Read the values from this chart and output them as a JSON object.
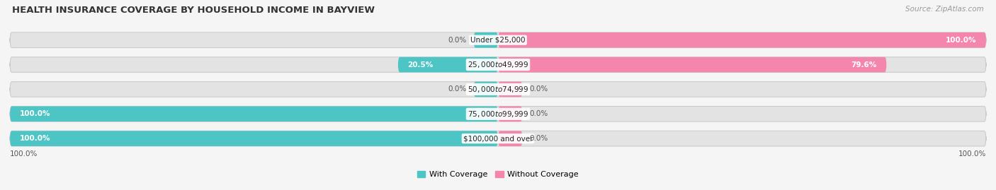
{
  "title": "HEALTH INSURANCE COVERAGE BY HOUSEHOLD INCOME IN BAYVIEW",
  "source": "Source: ZipAtlas.com",
  "categories": [
    "Under $25,000",
    "$25,000 to $49,999",
    "$50,000 to $74,999",
    "$75,000 to $99,999",
    "$100,000 and over"
  ],
  "with_coverage": [
    0.0,
    20.5,
    0.0,
    100.0,
    100.0
  ],
  "without_coverage": [
    100.0,
    79.6,
    0.0,
    0.0,
    0.0
  ],
  "small_bar_pct": 5.0,
  "color_with": "#4DC5C5",
  "color_without": "#F485AD",
  "bg_color": "#f5f5f5",
  "bar_bg_color": "#e3e3e3",
  "bar_bg_border": "#d0d0d0",
  "legend_with": "With Coverage",
  "legend_without": "Without Coverage",
  "axis_label_left": "100.0%",
  "axis_label_right": "100.0%",
  "title_fontsize": 9.5,
  "source_fontsize": 7.5,
  "bar_label_fontsize": 7.5,
  "cat_fontsize": 7.5,
  "legend_fontsize": 8.0,
  "axis_fontsize": 7.5
}
